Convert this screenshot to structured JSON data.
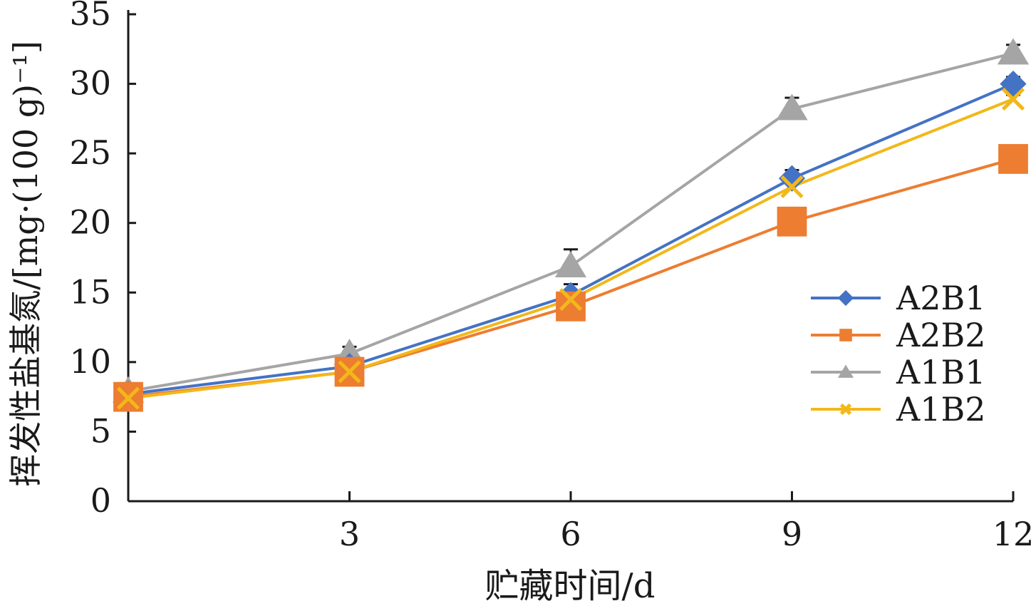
{
  "chart_data": {
    "type": "line",
    "title": "",
    "xlabel": "贮藏时间/d",
    "ylabel": "挥发性盐基氮/[mg·(100 g)⁻¹]",
    "x": [
      0,
      3,
      6,
      9,
      12
    ],
    "x_tick_labels": [
      "3",
      "6",
      "9",
      "12"
    ],
    "x_tick_values": [
      3,
      6,
      9,
      12
    ],
    "xlim": [
      0,
      12
    ],
    "ylim": [
      0,
      35
    ],
    "y_ticks": [
      0,
      5,
      10,
      15,
      20,
      25,
      30,
      35
    ],
    "grid": false,
    "legend_position": "right",
    "series": [
      {
        "name": "A2B1",
        "color": "#4472C4",
        "marker": "diamond",
        "values": [
          7.7,
          9.7,
          14.8,
          23.2,
          30.0
        ],
        "errors": [
          0.3,
          0.3,
          0.8,
          0.6,
          0.5
        ]
      },
      {
        "name": "A2B2",
        "color": "#ED7D31",
        "marker": "square",
        "values": [
          7.5,
          9.3,
          14.0,
          20.1,
          24.6
        ],
        "errors": [
          0.2,
          0.2,
          0.3,
          0.3,
          0.3
        ]
      },
      {
        "name": "A1B1",
        "color": "#A5A5A5",
        "marker": "triangle",
        "values": [
          7.9,
          10.6,
          16.9,
          28.2,
          32.2
        ],
        "errors": [
          0.3,
          0.5,
          1.2,
          0.8,
          0.6
        ]
      },
      {
        "name": "A1B2",
        "color": "#F2B81A",
        "marker": "x",
        "values": [
          7.4,
          9.3,
          14.5,
          22.6,
          28.9
        ],
        "errors": [
          0.2,
          0.2,
          0.4,
          0.4,
          0.3
        ]
      }
    ]
  }
}
